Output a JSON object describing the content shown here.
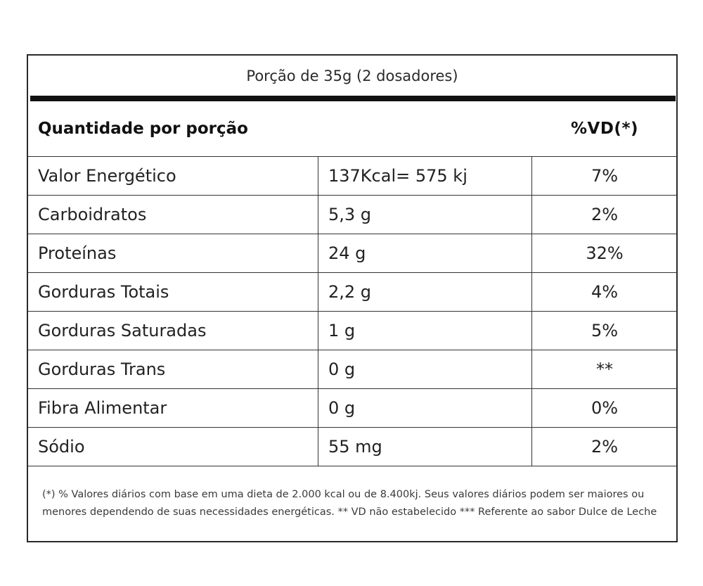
{
  "serving": "Porção de 35g (2 dosadores)",
  "header": {
    "left": "Quantidade por porção",
    "right": "%VD(*)"
  },
  "rows": [
    {
      "name": "Valor Energético",
      "amount": "137Kcal= 575 kj",
      "vd": "7%"
    },
    {
      "name": "Carboidratos",
      "amount": "5,3 g",
      "vd": "2%"
    },
    {
      "name": "Proteínas",
      "amount": "24 g",
      "vd": "32%"
    },
    {
      "name": "Gorduras Totais",
      "amount": "2,2 g",
      "vd": "4%"
    },
    {
      "name": "Gorduras Saturadas",
      "amount": "1 g",
      "vd": "5%"
    },
    {
      "name": "Gorduras Trans",
      "amount": "0 g",
      "vd": "**"
    },
    {
      "name": "Fibra Alimentar",
      "amount": "0 g",
      "vd": "0%"
    },
    {
      "name": "Sódio",
      "amount": "55 mg",
      "vd": "2%"
    }
  ],
  "footnote": "(*) % Valores diários com base em uma dieta de 2.000 kcal ou de 8.400kj. Seus valores diários podem ser maiores ou menores dependendo de suas necessidades energéticas. ** VD não estabelecido *** Referente ao sabor Dulce de Leche"
}
